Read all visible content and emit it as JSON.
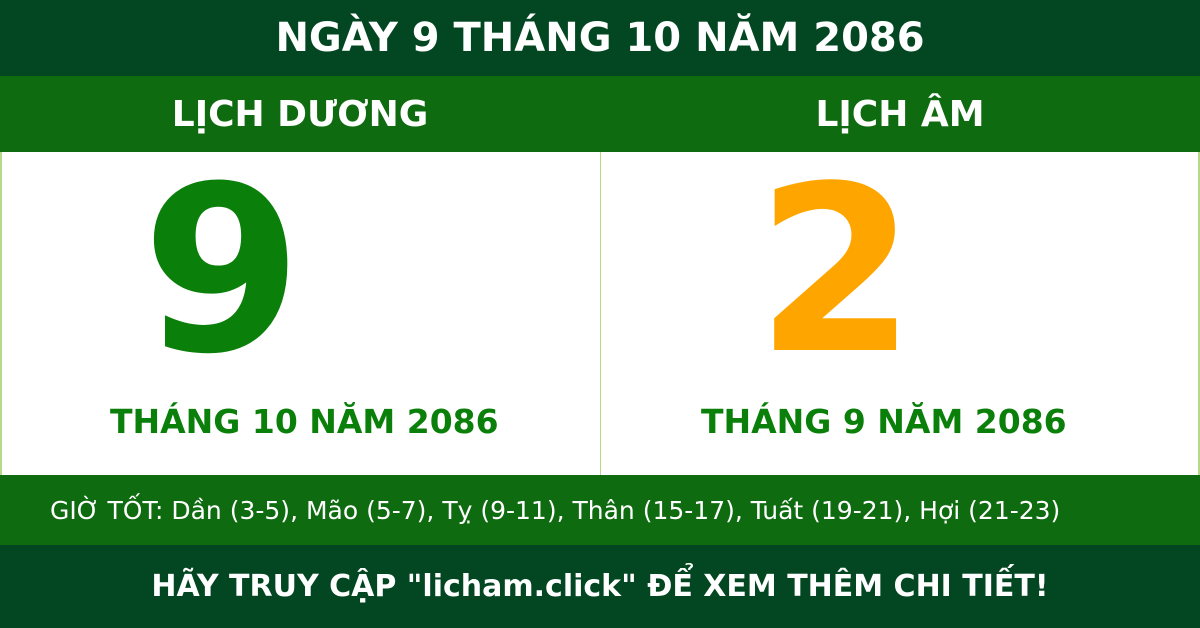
{
  "title": "NGÀY 9 THÁNG 10 NĂM 2086",
  "solar": {
    "label": "LỊCH DƯƠNG",
    "day": "9",
    "month_year": "THÁNG 10 NĂM 2086",
    "color": "#0a7f0a"
  },
  "lunar": {
    "label": "LỊCH ÂM",
    "day": "2",
    "month_year": "THÁNG 9 NĂM 2086",
    "color": "#ffa500"
  },
  "good_hours": "GIỜ TỐT: Dần (3-5), Mão (5-7), Tỵ (9-11), Thân (15-17), Tuất (19-21), Hợi (21-23)",
  "footer": "HÃY TRUY CẬP \"licham.click\" ĐỂ XEM THÊM CHI TIẾT!",
  "colors": {
    "dark_green": "#034722",
    "green": "#0f6b10"
  }
}
